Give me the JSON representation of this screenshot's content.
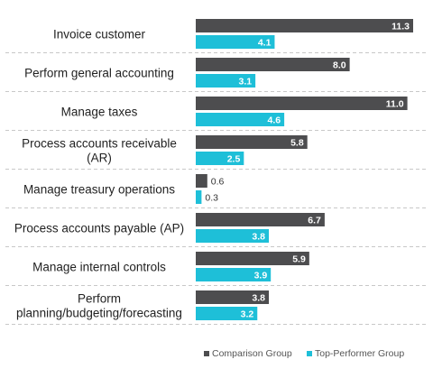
{
  "chart_data": {
    "type": "bar",
    "orientation": "horizontal",
    "categories": [
      [
        "Invoice customer"
      ],
      [
        "Perform general accounting"
      ],
      [
        "Manage taxes"
      ],
      [
        "Process accounts receivable",
        "(AR)"
      ],
      [
        "Manage treasury operations"
      ],
      [
        "Process accounts payable (AP)"
      ],
      [
        "Manage internal controls"
      ],
      [
        "Perform",
        "planning/budgeting/forecasting"
      ]
    ],
    "series": [
      {
        "name": "Comparison Group",
        "color": "#4d4d4f",
        "values": [
          11.3,
          8.0,
          11.0,
          5.8,
          0.6,
          6.7,
          5.9,
          3.8
        ],
        "labels": [
          "11.3",
          "8.0",
          "11.0",
          "5.8",
          "0.6",
          "6.7",
          "5.9",
          "3.8"
        ]
      },
      {
        "name": "Top-Performer Group",
        "color": "#1ebfd8",
        "values": [
          4.1,
          3.1,
          4.6,
          2.5,
          0.3,
          3.8,
          3.9,
          3.2
        ],
        "labels": [
          "4.1",
          "3.1",
          "4.6",
          "2.5",
          "0.3",
          "3.8",
          "3.9",
          "3.2"
        ]
      }
    ],
    "title": "",
    "xlabel": "",
    "ylabel": "",
    "xlim": [
      0,
      11.3
    ],
    "grid": false,
    "legend_position": "bottom-right"
  }
}
